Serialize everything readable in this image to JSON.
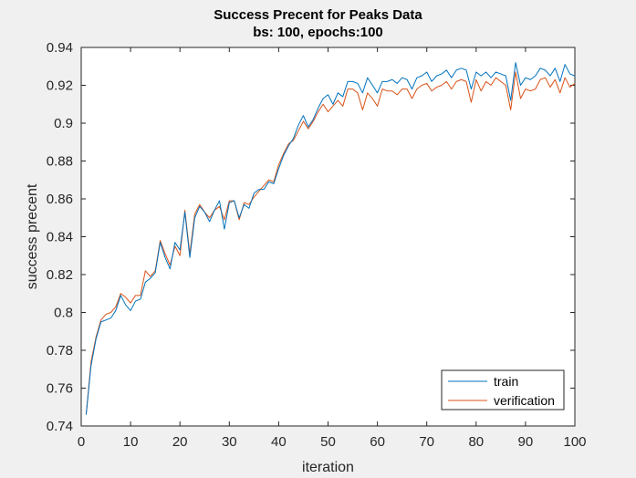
{
  "chart_data": {
    "type": "line",
    "title": "Success Precent for Peaks Data",
    "subtitle": "bs: 100, epochs:100",
    "xlabel": "iteration",
    "ylabel": "success precent",
    "xlim": [
      0,
      100
    ],
    "ylim": [
      0.74,
      0.94
    ],
    "xticks": [
      "0",
      "10",
      "20",
      "30",
      "40",
      "50",
      "60",
      "70",
      "80",
      "90",
      "100"
    ],
    "yticks": [
      "0.74",
      "0.76",
      "0.78",
      "0.8",
      "0.82",
      "0.84",
      "0.86",
      "0.88",
      "0.9",
      "0.92",
      "0.94"
    ],
    "grid": false,
    "legend_position": "bottom-right",
    "x": [
      1,
      2,
      3,
      4,
      5,
      6,
      7,
      8,
      9,
      10,
      11,
      12,
      13,
      14,
      15,
      16,
      17,
      18,
      19,
      20,
      21,
      22,
      23,
      24,
      25,
      26,
      27,
      28,
      29,
      30,
      31,
      32,
      33,
      34,
      35,
      36,
      37,
      38,
      39,
      40,
      41,
      42,
      43,
      44,
      45,
      46,
      47,
      48,
      49,
      50,
      51,
      52,
      53,
      54,
      55,
      56,
      57,
      58,
      59,
      60,
      61,
      62,
      63,
      64,
      65,
      66,
      67,
      68,
      69,
      70,
      71,
      72,
      73,
      74,
      75,
      76,
      77,
      78,
      79,
      80,
      81,
      82,
      83,
      84,
      85,
      86,
      87,
      88,
      89,
      90,
      91,
      92,
      93,
      94,
      95,
      96,
      97,
      98,
      99,
      100
    ],
    "series": [
      {
        "name": "train",
        "color": "#0072bd",
        "values": [
          0.746,
          0.772,
          0.786,
          0.795,
          0.796,
          0.797,
          0.801,
          0.809,
          0.804,
          0.801,
          0.806,
          0.807,
          0.816,
          0.818,
          0.821,
          0.837,
          0.829,
          0.823,
          0.837,
          0.833,
          0.853,
          0.829,
          0.85,
          0.856,
          0.853,
          0.848,
          0.854,
          0.859,
          0.844,
          0.858,
          0.859,
          0.85,
          0.857,
          0.855,
          0.863,
          0.865,
          0.865,
          0.869,
          0.868,
          0.876,
          0.883,
          0.888,
          0.892,
          0.899,
          0.904,
          0.898,
          0.902,
          0.908,
          0.913,
          0.915,
          0.91,
          0.916,
          0.914,
          0.922,
          0.922,
          0.921,
          0.916,
          0.924,
          0.92,
          0.916,
          0.922,
          0.922,
          0.923,
          0.921,
          0.924,
          0.923,
          0.918,
          0.924,
          0.925,
          0.927,
          0.922,
          0.925,
          0.926,
          0.928,
          0.924,
          0.928,
          0.929,
          0.928,
          0.918,
          0.927,
          0.925,
          0.927,
          0.924,
          0.927,
          0.926,
          0.925,
          0.912,
          0.932,
          0.92,
          0.924,
          0.923,
          0.925,
          0.929,
          0.928,
          0.925,
          0.929,
          0.922,
          0.931,
          0.926,
          0.925
        ]
      },
      {
        "name": "verification",
        "color": "#d95319",
        "values": [
          0.746,
          0.774,
          0.787,
          0.796,
          0.799,
          0.8,
          0.803,
          0.81,
          0.808,
          0.805,
          0.809,
          0.809,
          0.822,
          0.819,
          0.822,
          0.838,
          0.831,
          0.825,
          0.835,
          0.83,
          0.854,
          0.831,
          0.852,
          0.857,
          0.853,
          0.85,
          0.854,
          0.856,
          0.849,
          0.859,
          0.859,
          0.849,
          0.858,
          0.857,
          0.861,
          0.864,
          0.867,
          0.87,
          0.869,
          0.878,
          0.884,
          0.889,
          0.891,
          0.896,
          0.901,
          0.897,
          0.901,
          0.906,
          0.91,
          0.906,
          0.909,
          0.912,
          0.909,
          0.918,
          0.918,
          0.916,
          0.907,
          0.916,
          0.913,
          0.909,
          0.918,
          0.917,
          0.917,
          0.915,
          0.918,
          0.918,
          0.913,
          0.918,
          0.92,
          0.921,
          0.917,
          0.919,
          0.92,
          0.922,
          0.918,
          0.922,
          0.923,
          0.922,
          0.911,
          0.923,
          0.917,
          0.922,
          0.92,
          0.924,
          0.922,
          0.92,
          0.907,
          0.927,
          0.913,
          0.918,
          0.917,
          0.918,
          0.923,
          0.924,
          0.919,
          0.923,
          0.916,
          0.924,
          0.919,
          0.921
        ]
      }
    ]
  }
}
